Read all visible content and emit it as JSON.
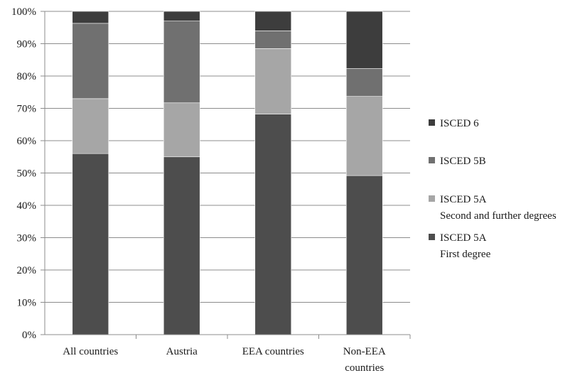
{
  "chart_data": {
    "type": "bar",
    "stacked": true,
    "categories": [
      [
        "All countries"
      ],
      [
        "Austria"
      ],
      [
        "EEA countries"
      ],
      [
        "Non-EEA",
        "countries"
      ]
    ],
    "yticks": [
      "0%",
      "10%",
      "20%",
      "30%",
      "40%",
      "50%",
      "60%",
      "70%",
      "80%",
      "90%",
      "100%"
    ],
    "ylim": [
      0,
      100
    ],
    "grid": true,
    "legend_position": "right",
    "series": [
      {
        "name": [
          "ISCED 5A",
          "First degree"
        ],
        "color": "#4d4d4d",
        "values": [
          56,
          55,
          68.2,
          49.2
        ]
      },
      {
        "name": [
          "ISCED 5A",
          "Second and further degrees"
        ],
        "color": "#a6a6a6",
        "values": [
          17,
          16.7,
          20.3,
          24.5
        ]
      },
      {
        "name": [
          "ISCED 5B"
        ],
        "color": "#707070",
        "values": [
          23.3,
          25.3,
          5.5,
          8.6
        ]
      },
      {
        "name": [
          "ISCED 6"
        ],
        "color": "#3d3d3d",
        "values": [
          3.7,
          3,
          6,
          17.7
        ]
      }
    ],
    "legend_order": [
      3,
      2,
      1,
      0
    ]
  }
}
